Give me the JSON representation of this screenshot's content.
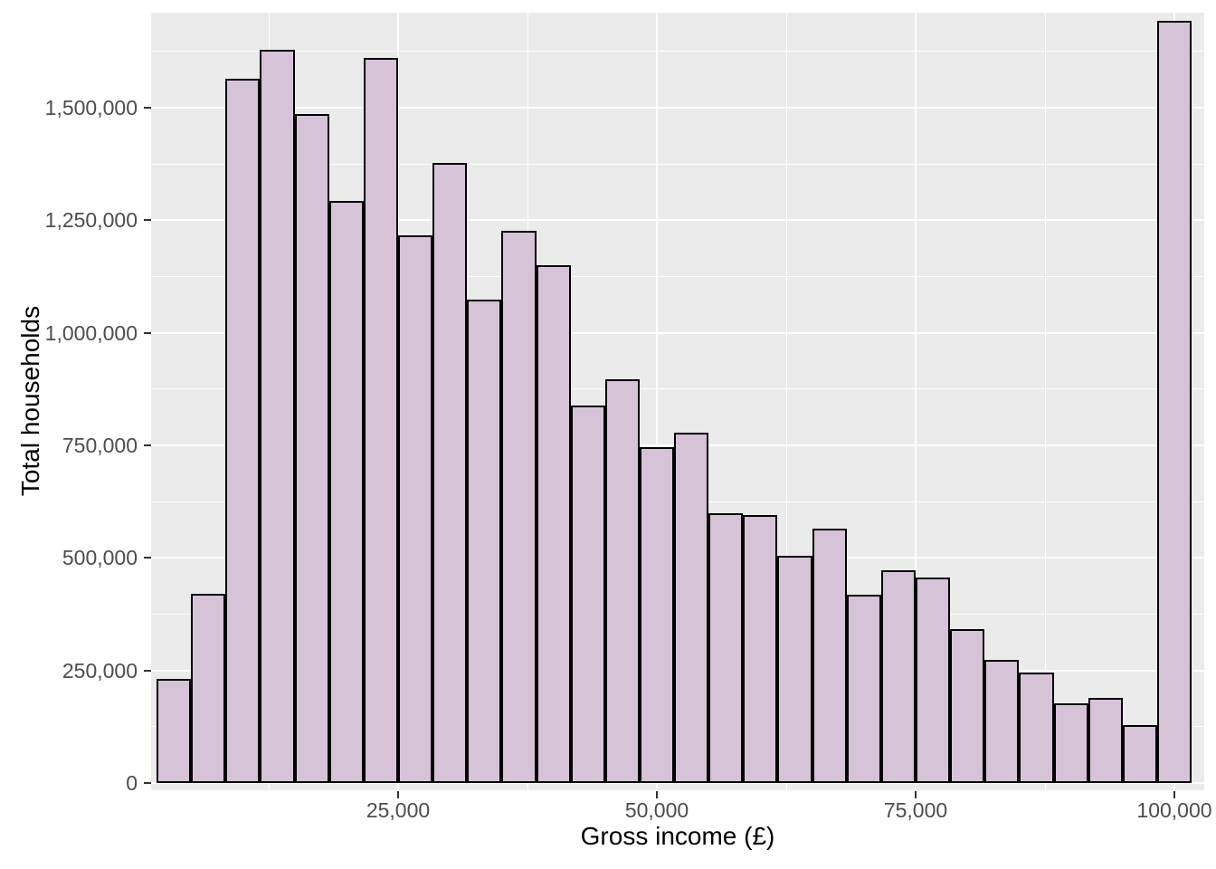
{
  "chart_data": {
    "type": "bar",
    "subtype": "histogram",
    "title": "",
    "xlabel": "Gross income (£)",
    "ylabel": "Total households",
    "bin_width": 3333.33,
    "bin_centers": [
      3333,
      6667,
      10000,
      13333,
      16667,
      20000,
      23333,
      26667,
      30000,
      33333,
      36667,
      40000,
      43333,
      46667,
      50000,
      53333,
      56667,
      60000,
      63333,
      66667,
      70000,
      73333,
      76667,
      80000,
      83333,
      86667,
      90000,
      93333,
      96667,
      100000
    ],
    "values": [
      231000,
      420000,
      1564000,
      1629000,
      1486000,
      1293000,
      1611000,
      1217000,
      1377000,
      1074000,
      1227000,
      1150000,
      838000,
      896000,
      746000,
      778000,
      599000,
      595000,
      504000,
      565000,
      418000,
      472000,
      456000,
      342000,
      273000,
      246000,
      177000,
      189000,
      129000,
      1693000
    ],
    "x_ticks": [
      {
        "value": 25000,
        "label": "25,000"
      },
      {
        "value": 50000,
        "label": "50,000"
      },
      {
        "value": 75000,
        "label": "75,000"
      },
      {
        "value": 100000,
        "label": "100,000"
      }
    ],
    "y_ticks": [
      {
        "value": 0,
        "label": "0"
      },
      {
        "value": 250000,
        "label": "250,000"
      },
      {
        "value": 500000,
        "label": "500,000"
      },
      {
        "value": 750000,
        "label": "750,000"
      },
      {
        "value": 1000000,
        "label": "1,000,000"
      },
      {
        "value": 1250000,
        "label": "1,250,000"
      },
      {
        "value": 1500000,
        "label": "1,500,000"
      }
    ],
    "x_minor_gridlines": [
      12500,
      37500,
      62500,
      87500
    ],
    "y_minor_gridlines": [
      125000,
      375000,
      625000,
      875000,
      1125000,
      1375000,
      1625000
    ],
    "xlim": [
      1136,
      102890
    ],
    "ylim": [
      -16000,
      1711000
    ],
    "grid": "on",
    "legend_position": "none",
    "colors": {
      "bar_fill": "#D6C3D8",
      "bar_stroke": "#000000",
      "panel_background": "#EBEBEB",
      "gridline": "#FFFFFF",
      "tick_label": "#4D4D4D",
      "tick_mark": "#333333",
      "axis_title": "#000000",
      "figure_background": "#FFFFFF"
    }
  }
}
